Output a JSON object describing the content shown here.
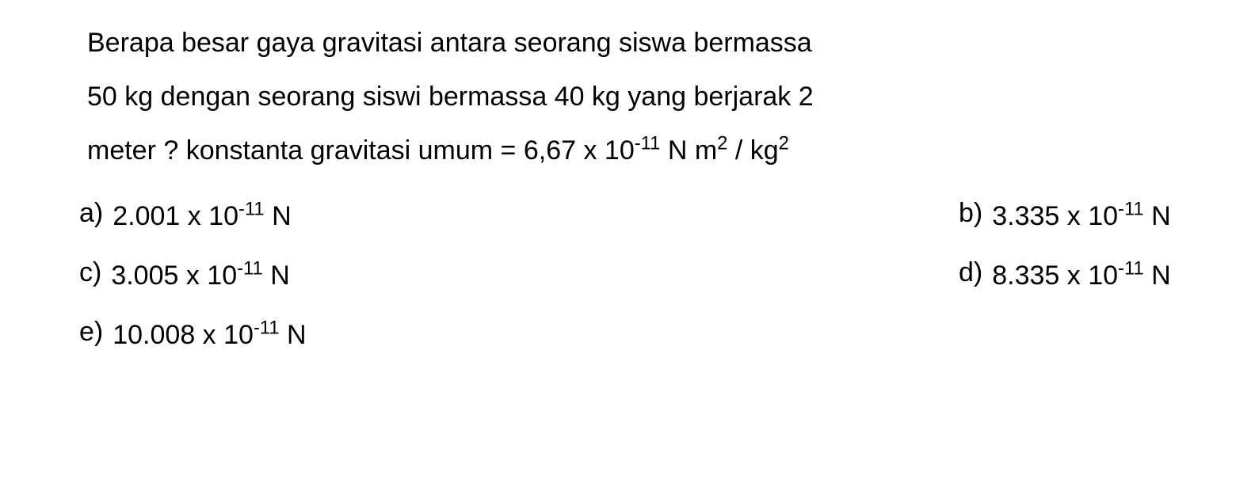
{
  "question": {
    "line1": "Berapa besar gaya gravitasi antara seorang siswa bermassa",
    "line2": "50 kg dengan seorang siswi bermassa 40 kg yang berjarak 2",
    "line3_prefix": "meter ? konstanta gravitasi umum = 6,67 x 10",
    "line3_exp": "-11",
    "line3_mid": " N m",
    "line3_sup2": "2",
    "line3_slash": " / kg",
    "line3_sup3": "2"
  },
  "options": {
    "a": {
      "label": "a)",
      "coeff": "2.001 x 10",
      "exp": "-11",
      "unit": " N"
    },
    "b": {
      "label": "b)",
      "coeff": "3.335 x 10",
      "exp": "-11",
      "unit": " N"
    },
    "c": {
      "label": "c)",
      "coeff": "3.005 x 10",
      "exp": "-11",
      "unit": " N"
    },
    "d": {
      "label": "d)",
      "coeff": "8.335 x 10",
      "exp": "-11",
      "unit": " N"
    },
    "e": {
      "label": "e)",
      "coeff": "10.008 x 10",
      "exp": "-11",
      "unit": " N"
    }
  },
  "style": {
    "background_color": "#ffffff",
    "text_color": "#000000",
    "font_size_pt": 26,
    "font_family": "Arial",
    "line_height": 2.0
  }
}
